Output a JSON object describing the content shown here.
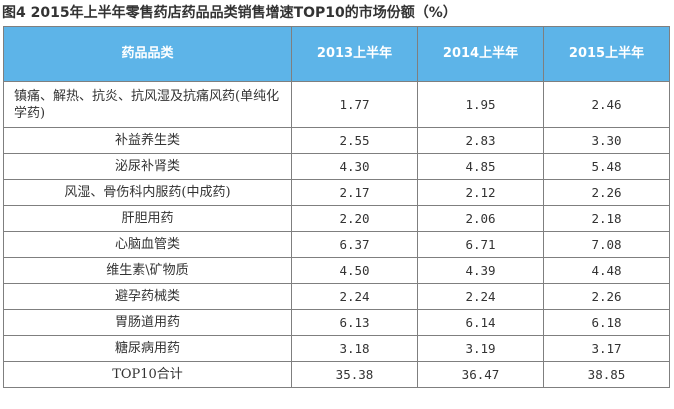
{
  "title": "图4 2015年上半年零售药店药品品类销售增速TOP10的市场份额（%）",
  "table": {
    "headers": [
      "药品品类",
      "2013上半年",
      "2014上半年",
      "2015上半年"
    ],
    "rows": [
      {
        "category": "镇痛、解热、抗炎、抗风湿及抗痛风药(单纯化学药)",
        "v2013": "1.77",
        "v2014": "1.95",
        "v2015": "2.46"
      },
      {
        "category": "补益养生类",
        "v2013": "2.55",
        "v2014": "2.83",
        "v2015": "3.30"
      },
      {
        "category": "泌尿补肾类",
        "v2013": "4.30",
        "v2014": "4.85",
        "v2015": "5.48"
      },
      {
        "category": "风湿、骨伤科内服药(中成药)",
        "v2013": "2.17",
        "v2014": "2.12",
        "v2015": "2.26"
      },
      {
        "category": "肝胆用药",
        "v2013": "2.20",
        "v2014": "2.06",
        "v2015": "2.18"
      },
      {
        "category": "心脑血管类",
        "v2013": "6.37",
        "v2014": "6.71",
        "v2015": "7.08"
      },
      {
        "category": "维生素\\矿物质",
        "v2013": "4.50",
        "v2014": "4.39",
        "v2015": "4.48"
      },
      {
        "category": "避孕药械类",
        "v2013": "2.24",
        "v2014": "2.24",
        "v2015": "2.26"
      },
      {
        "category": "胃肠道用药",
        "v2013": "6.13",
        "v2014": "6.14",
        "v2015": "6.18"
      },
      {
        "category": "糖尿病用药",
        "v2013": "3.18",
        "v2014": "3.19",
        "v2015": "3.17"
      },
      {
        "category": "TOP10合计",
        "v2013": "35.38",
        "v2014": "36.47",
        "v2015": "38.85"
      }
    ]
  },
  "colors": {
    "header_bg": "#5db4e8",
    "header_text": "#ffffff",
    "border": "#7f7f7f",
    "text": "#333333"
  }
}
